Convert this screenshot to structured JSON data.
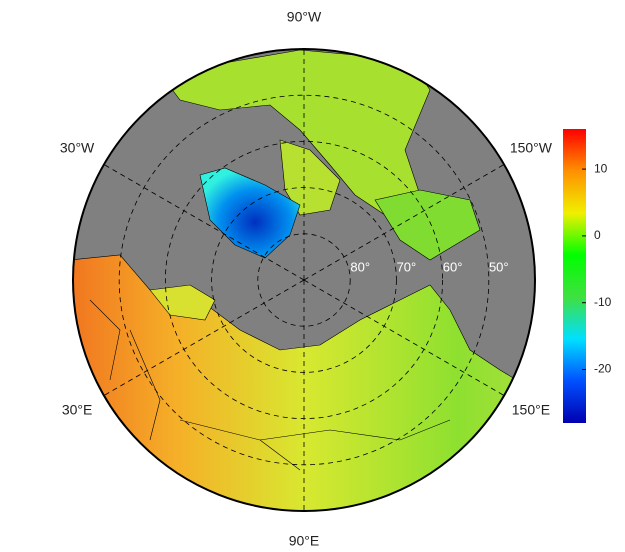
{
  "map": {
    "lat_lim": [
      90,
      40
    ],
    "lat_labels": [
      {
        "value": 80,
        "label": "80°"
      },
      {
        "value": 70,
        "label": "70°"
      },
      {
        "value": 60,
        "label": "60°"
      },
      {
        "value": 50,
        "label": "50°"
      }
    ],
    "lon_labels": [
      {
        "value": -90,
        "label": "90°W"
      },
      {
        "value": -30,
        "label": "30°W"
      },
      {
        "value": -150,
        "label": "150°W"
      },
      {
        "value": 30,
        "label": "30°E"
      },
      {
        "value": 150,
        "label": "150°E"
      },
      {
        "value": 90,
        "label": "90°E"
      }
    ],
    "colorbar": {
      "lim": [
        -28,
        16
      ],
      "ticks": [
        10,
        0,
        -10,
        -20
      ],
      "colors": [
        "#0000b0",
        "#0050ff",
        "#00e0ff",
        "#40e040",
        "#00ff00",
        "#f0f000",
        "#ff9000",
        "#ff0000"
      ]
    }
  }
}
